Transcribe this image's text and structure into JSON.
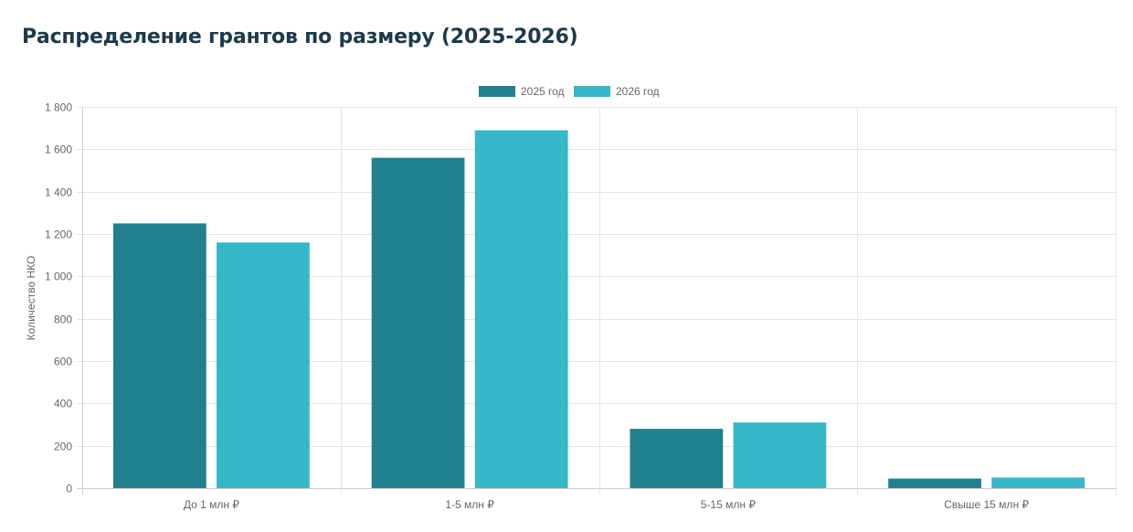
{
  "chart_data": {
    "type": "bar",
    "title": "Распределение грантов по размеру (2025-2026)",
    "xlabel": "",
    "ylabel": "Количество НКО",
    "categories": [
      "До 1 млн ₽",
      "1-5 млн ₽",
      "5-15 млн ₽",
      "Свыше 15 млн ₽"
    ],
    "series": [
      {
        "name": "2025 год",
        "color": "#20808d",
        "values": [
          1250,
          1560,
          280,
          45
        ]
      },
      {
        "name": "2026 год",
        "color": "#35b8c8",
        "values": [
          1160,
          1690,
          310,
          50
        ]
      }
    ],
    "ylim": [
      0,
      1800
    ],
    "yticks": [
      0,
      200,
      400,
      600,
      800,
      1000,
      1200,
      1400,
      1600,
      1800
    ],
    "ytick_labels": [
      "0",
      "200",
      "400",
      "600",
      "800",
      "1 000",
      "1 200",
      "1 400",
      "1 600",
      "1 800"
    ],
    "grid": true,
    "legend_position": "top-center"
  }
}
